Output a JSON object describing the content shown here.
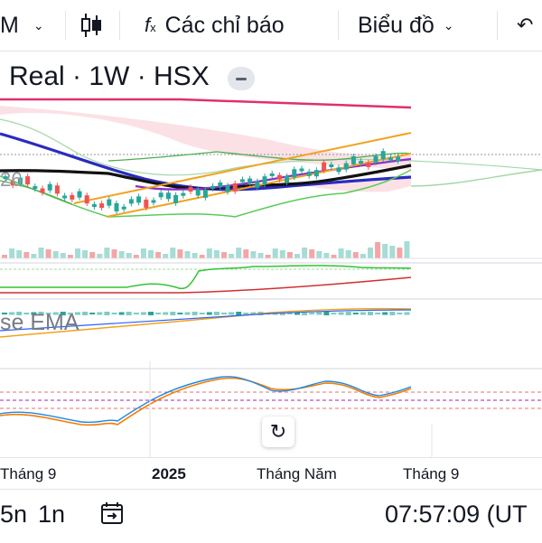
{
  "toolbar": {
    "interval_label": "M",
    "indicators_label": "Các chỉ báo",
    "chart_type_label": "Biểu đồ"
  },
  "legend": {
    "symbol": "Real · 1W · HSX"
  },
  "indicator_labels": {
    "level_label": "26",
    "ema_label": "se EMA"
  },
  "xaxis": {
    "labels": [
      "Tháng 9",
      "2025",
      "Tháng Năm",
      "Tháng 9"
    ]
  },
  "bottom": {
    "range_1": "5n",
    "range_2": "1n",
    "time": "07:57:09 (UT"
  },
  "colors": {
    "up": "#26a69a",
    "down": "#ef5350",
    "navy": "#2a2bbf",
    "magenta": "#e0306e",
    "orange": "#f3a21c",
    "green": "#4caf50",
    "purple": "#8b2fc9"
  },
  "icons": {
    "toolbar": [
      "chevron-down-icon",
      "candlestick-icon",
      "fx-icon",
      "undo-icon"
    ],
    "bottom": [
      "goto-date-icon"
    ],
    "chart": [
      "reset-icon"
    ]
  }
}
